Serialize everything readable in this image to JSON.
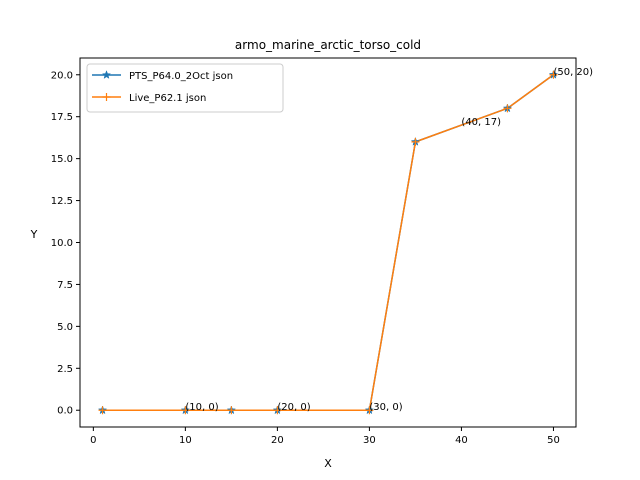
{
  "chart_data": {
    "type": "line",
    "title": "armo_marine_arctic_torso_cold",
    "xlabel": "X",
    "ylabel": "Y",
    "xlim": [
      -1.45,
      52.45
    ],
    "ylim": [
      -1.0,
      21.0
    ],
    "xticks": [
      0,
      10,
      20,
      30,
      40,
      50
    ],
    "yticks": [
      0.0,
      2.5,
      5.0,
      7.5,
      10.0,
      12.5,
      15.0,
      17.5,
      20.0
    ],
    "ytick_labels": [
      "0.0",
      "2.5",
      "5.0",
      "7.5",
      "10.0",
      "12.5",
      "15.0",
      "17.5",
      "20.0"
    ],
    "grid": false,
    "legend_position": "upper-left",
    "series": [
      {
        "name": "PTS_P64.0_2Oct json",
        "color": "#1f77b4",
        "marker": "star",
        "x": [
          1,
          10,
          15,
          20,
          30,
          35,
          45,
          50
        ],
        "y": [
          0,
          0,
          0,
          0,
          0,
          16,
          18,
          20
        ]
      },
      {
        "name": "Live_P62.1 json",
        "color": "#ff7f0e",
        "marker": "plus",
        "x": [
          1,
          10,
          15,
          20,
          30,
          35,
          45,
          50
        ],
        "y": [
          0,
          0,
          0,
          0,
          0,
          16,
          18,
          20
        ]
      }
    ],
    "annotations": [
      {
        "text": "(10, 0)",
        "x": 10,
        "y": 0
      },
      {
        "text": "(20, 0)",
        "x": 20,
        "y": 0
      },
      {
        "text": "(30, 0)",
        "x": 30,
        "y": 0
      },
      {
        "text": "(40, 17)",
        "x": 40,
        "y": 17
      },
      {
        "text": "(50, 20)",
        "x": 50,
        "y": 20
      }
    ]
  }
}
